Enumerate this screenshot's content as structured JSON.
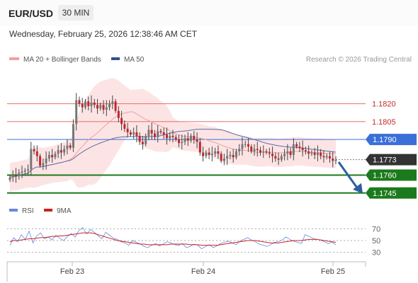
{
  "header": {
    "symbol": "EUR/USD",
    "timeframe": "30 MIN"
  },
  "datetime": "Wednesday, February 25, 2026 12:38:46 AM CET",
  "legend": {
    "ma20": "MA 20 + Bollinger Bands",
    "ma50": "MA 50",
    "credit": "Research © 2026 Trading Central"
  },
  "rsi_legend": {
    "rsi": "RSI",
    "ma9": "9MA"
  },
  "colors": {
    "resistance": "#e46b6b",
    "support": "#1b7a1b",
    "pivot": "#3a6fd8",
    "current": "#333333",
    "bollinger": "#fde4e4",
    "ma20": "#f0a0a0",
    "ma50": "#5a6aa8",
    "candle_up": "#777777",
    "candle_down": "#c4262e",
    "rsi": "#6688dd",
    "rsi_ma": "#cc2222",
    "arrow": "#2d5f9e"
  },
  "chart_data": {
    "type": "candlestick",
    "x_tick_labels": [
      "Feb 23",
      "Feb 24",
      "Feb 25"
    ],
    "ylim": [
      1.173,
      1.184
    ],
    "levels": [
      {
        "value": "1.1820",
        "kind": "resistance"
      },
      {
        "value": "1.1805",
        "kind": "resistance"
      },
      {
        "value": "1.1790",
        "kind": "pivot"
      },
      {
        "value": "1.1773",
        "kind": "current"
      },
      {
        "value": "1.1760",
        "kind": "support"
      },
      {
        "value": "1.1745",
        "kind": "support"
      }
    ],
    "forecast_arrow": {
      "from": 1.1771,
      "to": 1.1745,
      "direction": "down"
    },
    "close": [
      1.1758,
      1.176,
      1.1759,
      1.1762,
      1.1763,
      1.1764,
      1.1765,
      1.1782,
      1.178,
      1.1776,
      1.1768,
      1.177,
      1.1774,
      1.1777,
      1.1775,
      1.1778,
      1.1781,
      1.1779,
      1.1782,
      1.1785,
      1.1783,
      1.1803,
      1.1823,
      1.182,
      1.1817,
      1.1822,
      1.1818,
      1.1821,
      1.1819,
      1.1816,
      1.1819,
      1.1815,
      1.1817,
      1.182,
      1.1822,
      1.1814,
      1.1808,
      1.1803,
      1.1799,
      1.1796,
      1.1794,
      1.1796,
      1.1793,
      1.1788,
      1.1786,
      1.1793,
      1.1798,
      1.1795,
      1.1792,
      1.1797,
      1.1796,
      1.1794,
      1.1791,
      1.1793,
      1.1792,
      1.179,
      1.1787,
      1.1788,
      1.1791,
      1.1789,
      1.1793,
      1.179,
      1.1788,
      1.1779,
      1.1776,
      1.1779,
      1.1777,
      1.1778,
      1.178,
      1.1778,
      1.1772,
      1.1774,
      1.1776,
      1.1777,
      1.1775,
      1.178,
      1.1782,
      1.1786,
      1.1786,
      1.1784,
      1.178,
      1.1782,
      1.1781,
      1.1779,
      1.178,
      1.1779,
      1.1778,
      1.1776,
      1.1774,
      1.1773,
      1.1776,
      1.1778,
      1.178,
      1.1777,
      1.1786,
      1.1784,
      1.1783,
      1.1781,
      1.178,
      1.1778,
      1.1779,
      1.1777,
      1.1779,
      1.1776,
      1.1775,
      1.1776,
      1.1774,
      1.1772,
      1.1773
    ],
    "rsi": {
      "ticks": [
        70,
        50,
        30
      ],
      "rsi": [
        42,
        55,
        48,
        60,
        52,
        66,
        46,
        58,
        63,
        53,
        56,
        51,
        59,
        54,
        50,
        57,
        62,
        56,
        67,
        72,
        61,
        69,
        64,
        58,
        53,
        64,
        59,
        54,
        52,
        48,
        46,
        42,
        50,
        47,
        44,
        40,
        38,
        42,
        45,
        41,
        44,
        48,
        46,
        43,
        42,
        45,
        38,
        40,
        44,
        42,
        36,
        40,
        43,
        38,
        41,
        45,
        47,
        49,
        46,
        43,
        49,
        52,
        55,
        51,
        48,
        44,
        42,
        40,
        43,
        47,
        48,
        51,
        56,
        52,
        49,
        47,
        45,
        60,
        57,
        54,
        52,
        51,
        48,
        45,
        47,
        43
      ],
      "ma9": [
        48,
        50,
        50,
        51,
        52,
        53,
        53,
        54,
        55,
        55,
        56,
        57,
        57,
        58,
        58,
        59,
        60,
        61,
        62,
        63,
        63,
        63,
        62,
        60,
        58,
        56,
        54,
        52,
        50,
        49,
        48,
        47,
        46,
        45,
        44,
        44,
        43,
        43,
        43,
        43,
        43,
        43,
        44,
        44,
        44,
        44,
        44,
        43,
        43,
        43,
        42,
        42,
        42,
        42,
        42,
        43,
        44,
        45,
        46,
        47,
        48,
        49,
        50,
        50,
        50,
        49,
        48,
        47,
        46,
        46,
        46,
        47,
        48,
        49,
        50,
        50,
        50,
        51,
        52,
        52,
        52,
        51,
        50,
        49,
        48,
        47
      ]
    }
  }
}
